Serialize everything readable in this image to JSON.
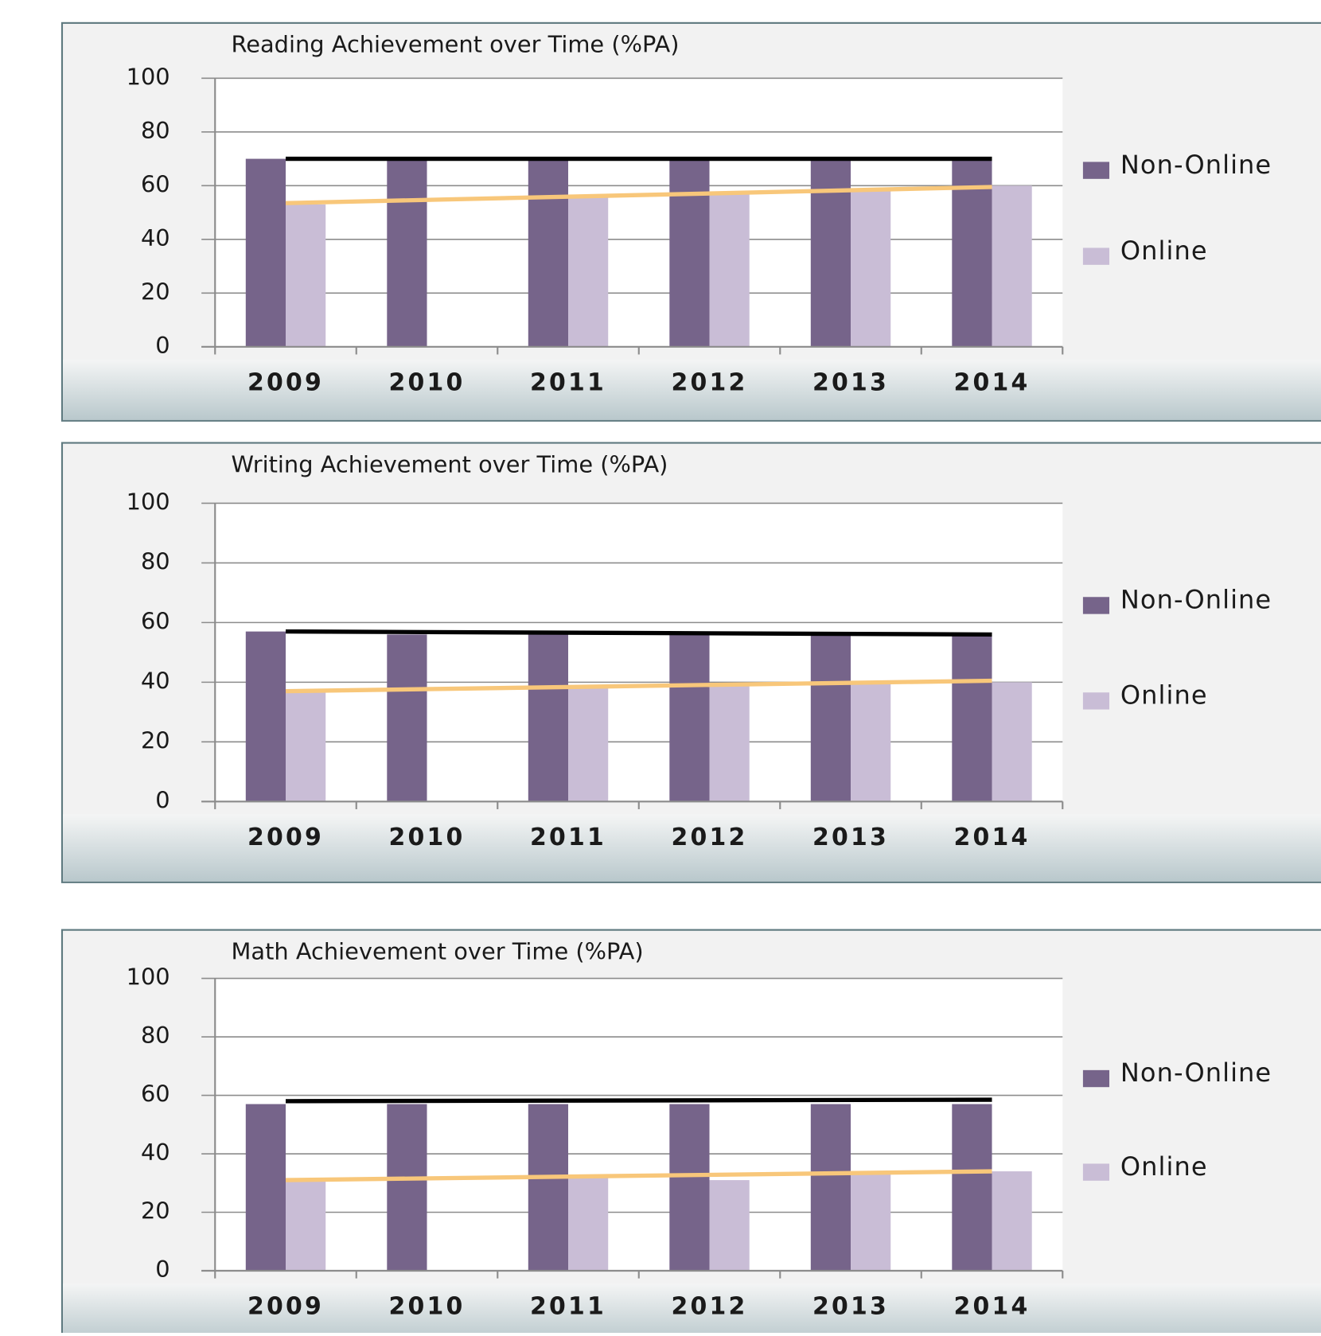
{
  "chart_data": [
    {
      "type": "bar",
      "title": "Reading Achievement over Time (%PA)",
      "categories": [
        "2009",
        "2010",
        "2011",
        "2012",
        "2013",
        "2014"
      ],
      "series": [
        {
          "name": "Non-Online",
          "color": "#76648a",
          "values": [
            70,
            70,
            70,
            70,
            70,
            70
          ]
        },
        {
          "name": "Online",
          "color": "#c9bdd6",
          "values": [
            53,
            null,
            56,
            57,
            58,
            60
          ]
        }
      ],
      "ylim": [
        0,
        100
      ],
      "yticks": [
        0,
        20,
        40,
        60,
        80,
        100
      ],
      "grid": true,
      "legend": "right",
      "trendlines": [
        {
          "color": "#000000",
          "values": [
            70,
            70
          ]
        },
        {
          "color": "#f8c77a",
          "values": [
            53.5,
            59.5
          ]
        }
      ]
    },
    {
      "type": "bar",
      "title": "Writing Achievement over Time (%PA)",
      "categories": [
        "2009",
        "2010",
        "2011",
        "2012",
        "2013",
        "2014"
      ],
      "series": [
        {
          "name": "Non-Online",
          "color": "#76648a",
          "values": [
            57,
            56,
            56,
            56,
            56,
            56
          ]
        },
        {
          "name": "Online",
          "color": "#c9bdd6",
          "values": [
            37,
            null,
            38,
            39,
            40,
            40
          ]
        }
      ],
      "ylim": [
        0,
        100
      ],
      "yticks": [
        0,
        20,
        40,
        60,
        80,
        100
      ],
      "grid": true,
      "legend": "right",
      "trendlines": [
        {
          "color": "#000000",
          "values": [
            57,
            56
          ]
        },
        {
          "color": "#f8c77a",
          "values": [
            37,
            40.5
          ]
        }
      ]
    },
    {
      "type": "bar",
      "title": "Math Achievement over Time (%PA)",
      "categories": [
        "2009",
        "2010",
        "2011",
        "2012",
        "2013",
        "2014"
      ],
      "series": [
        {
          "name": "Non-Online",
          "color": "#76648a",
          "values": [
            57,
            57,
            57,
            57,
            57,
            57
          ]
        },
        {
          "name": "Online",
          "color": "#c9bdd6",
          "values": [
            31,
            null,
            32,
            31,
            33,
            34
          ]
        }
      ],
      "ylim": [
        0,
        100
      ],
      "yticks": [
        0,
        20,
        40,
        60,
        80,
        100
      ],
      "grid": true,
      "legend": "right",
      "trendlines": [
        {
          "color": "#000000",
          "values": [
            58,
            58.5
          ]
        },
        {
          "color": "#f8c77a",
          "values": [
            31,
            34
          ]
        }
      ]
    }
  ]
}
